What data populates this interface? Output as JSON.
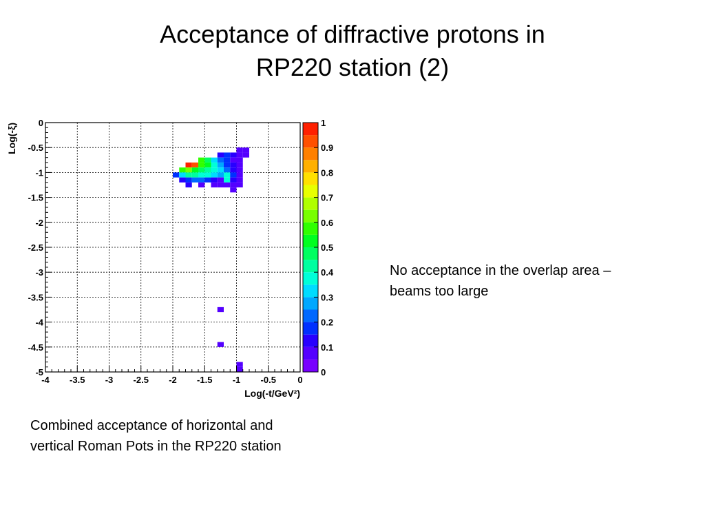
{
  "slide": {
    "title_line1": "Acceptance of diffractive protons in",
    "title_line2": "RP220 station (2)",
    "note_line1": "No acceptance in the overlap area –",
    "note_line2": "beams too large",
    "caption_line1": "Combined acceptance of horizontal and",
    "caption_line2": "vertical Roman Pots in the RP220 station"
  },
  "chart_data": {
    "type": "heatmap",
    "title": "",
    "xlabel": "Log(-t/GeV²)",
    "ylabel": "Log(-ξ)",
    "xlim": [
      -4,
      0
    ],
    "ylim": [
      -5,
      0
    ],
    "x_ticks": [
      -4,
      -3.5,
      -3,
      -2.5,
      -2,
      -1.5,
      -1,
      -0.5,
      0
    ],
    "x_tick_labels": [
      "-4",
      "-3.5",
      "-3",
      "-2.5",
      "-2",
      "-1.5",
      "-1",
      "-0.5",
      "0"
    ],
    "y_ticks": [
      0,
      -0.5,
      -1,
      -1.5,
      -2,
      -2.5,
      -3,
      -3.5,
      -4,
      -4.5,
      -5
    ],
    "y_tick_labels": [
      "0",
      "-0.5",
      "-1",
      "-1.5",
      "-2",
      "-2.5",
      "-3",
      "-3.5",
      "-4",
      "-4.5",
      "-5"
    ],
    "grid": true,
    "bin_width_x": 0.1,
    "bin_height_y": 0.1,
    "colorbar": {
      "range": [
        0,
        1
      ],
      "tick_labels": [
        "1",
        "0.9",
        "0.8",
        "0.7",
        "0.6",
        "0.5",
        "0.4",
        "0.3",
        "0.2",
        "0.1",
        "0"
      ],
      "ticks": [
        1,
        0.9,
        0.8,
        0.7,
        0.6,
        0.5,
        0.4,
        0.3,
        0.2,
        0.1,
        0
      ],
      "palette": [
        "#7800ff",
        "#5400ff",
        "#2800ff",
        "#0030ff",
        "#0068ff",
        "#00a8ff",
        "#00dcff",
        "#00ffd8",
        "#00ffa0",
        "#00ff60",
        "#00ff20",
        "#30ff00",
        "#78ff00",
        "#b0ff00",
        "#e8ff00",
        "#ffe000",
        "#ffb000",
        "#ff8000",
        "#ff5000",
        "#ff2000"
      ]
    },
    "cells": [
      {
        "x": -1.0,
        "y": -0.5,
        "v": 0.05
      },
      {
        "x": -0.9,
        "y": -0.5,
        "v": 0.05
      },
      {
        "x": -1.3,
        "y": -0.6,
        "v": 0.12
      },
      {
        "x": -1.2,
        "y": -0.6,
        "v": 0.15
      },
      {
        "x": -1.1,
        "y": -0.6,
        "v": 0.1
      },
      {
        "x": -1.0,
        "y": -0.6,
        "v": 0.05
      },
      {
        "x": -0.9,
        "y": -0.6,
        "v": 0.05
      },
      {
        "x": -1.6,
        "y": -0.7,
        "v": 0.55
      },
      {
        "x": -1.5,
        "y": -0.7,
        "v": 0.45
      },
      {
        "x": -1.4,
        "y": -0.7,
        "v": 0.3
      },
      {
        "x": -1.3,
        "y": -0.7,
        "v": 0.2
      },
      {
        "x": -1.2,
        "y": -0.7,
        "v": 0.15
      },
      {
        "x": -1.1,
        "y": -0.7,
        "v": 0.08
      },
      {
        "x": -1.0,
        "y": -0.7,
        "v": 0.05
      },
      {
        "x": -1.8,
        "y": -0.8,
        "v": 0.95
      },
      {
        "x": -1.7,
        "y": -0.8,
        "v": 0.9
      },
      {
        "x": -1.6,
        "y": -0.8,
        "v": 0.55
      },
      {
        "x": -1.5,
        "y": -0.8,
        "v": 0.5
      },
      {
        "x": -1.4,
        "y": -0.8,
        "v": 0.35
      },
      {
        "x": -1.3,
        "y": -0.8,
        "v": 0.28
      },
      {
        "x": -1.2,
        "y": -0.8,
        "v": 0.15
      },
      {
        "x": -1.1,
        "y": -0.8,
        "v": 0.1
      },
      {
        "x": -1.0,
        "y": -0.8,
        "v": 0.05
      },
      {
        "x": -1.9,
        "y": -0.9,
        "v": 0.55
      },
      {
        "x": -1.8,
        "y": -0.9,
        "v": 0.6
      },
      {
        "x": -1.7,
        "y": -0.9,
        "v": 0.5
      },
      {
        "x": -1.6,
        "y": -0.9,
        "v": 0.45
      },
      {
        "x": -1.5,
        "y": -0.9,
        "v": 0.4
      },
      {
        "x": -1.4,
        "y": -0.9,
        "v": 0.35
      },
      {
        "x": -1.3,
        "y": -0.9,
        "v": 0.3
      },
      {
        "x": -1.2,
        "y": -0.9,
        "v": 0.2
      },
      {
        "x": -1.1,
        "y": -0.9,
        "v": 0.12
      },
      {
        "x": -1.0,
        "y": -0.9,
        "v": 0.08
      },
      {
        "x": -2.0,
        "y": -1.0,
        "v": 0.15
      },
      {
        "x": -1.9,
        "y": -1.0,
        "v": 0.3
      },
      {
        "x": -1.8,
        "y": -1.0,
        "v": 0.4
      },
      {
        "x": -1.7,
        "y": -1.0,
        "v": 0.42
      },
      {
        "x": -1.6,
        "y": -1.0,
        "v": 0.38
      },
      {
        "x": -1.5,
        "y": -1.0,
        "v": 0.35
      },
      {
        "x": -1.4,
        "y": -1.0,
        "v": 0.32
      },
      {
        "x": -1.3,
        "y": -1.0,
        "v": 0.25
      },
      {
        "x": -1.2,
        "y": -1.0,
        "v": 0.35
      },
      {
        "x": -1.1,
        "y": -1.0,
        "v": 0.15
      },
      {
        "x": -1.0,
        "y": -1.0,
        "v": 0.08
      },
      {
        "x": -1.9,
        "y": -1.1,
        "v": 0.12
      },
      {
        "x": -1.8,
        "y": -1.1,
        "v": 0.15
      },
      {
        "x": -1.7,
        "y": -1.1,
        "v": 0.2
      },
      {
        "x": -1.6,
        "y": -1.1,
        "v": 0.22
      },
      {
        "x": -1.5,
        "y": -1.1,
        "v": 0.15
      },
      {
        "x": -1.4,
        "y": -1.1,
        "v": 0.1
      },
      {
        "x": -1.3,
        "y": -1.1,
        "v": 0.08
      },
      {
        "x": -1.2,
        "y": -1.1,
        "v": 0.38
      },
      {
        "x": -1.1,
        "y": -1.1,
        "v": 0.1
      },
      {
        "x": -1.0,
        "y": -1.1,
        "v": 0.05
      },
      {
        "x": -1.8,
        "y": -1.2,
        "v": 0.1
      },
      {
        "x": -1.6,
        "y": -1.2,
        "v": 0.08
      },
      {
        "x": -1.4,
        "y": -1.2,
        "v": 0.05
      },
      {
        "x": -1.3,
        "y": -1.2,
        "v": 0.05
      },
      {
        "x": -1.2,
        "y": -1.2,
        "v": 0.05
      },
      {
        "x": -1.1,
        "y": -1.2,
        "v": 0.05
      },
      {
        "x": -1.0,
        "y": -1.2,
        "v": 0.05
      },
      {
        "x": -1.1,
        "y": -1.3,
        "v": 0.05
      },
      {
        "x": -1.3,
        "y": -3.7,
        "v": 0.05
      },
      {
        "x": -1.3,
        "y": -4.4,
        "v": 0.05
      },
      {
        "x": -1.0,
        "y": -4.8,
        "v": 0.05
      },
      {
        "x": -1.0,
        "y": -4.9,
        "v": 0.05
      }
    ]
  }
}
